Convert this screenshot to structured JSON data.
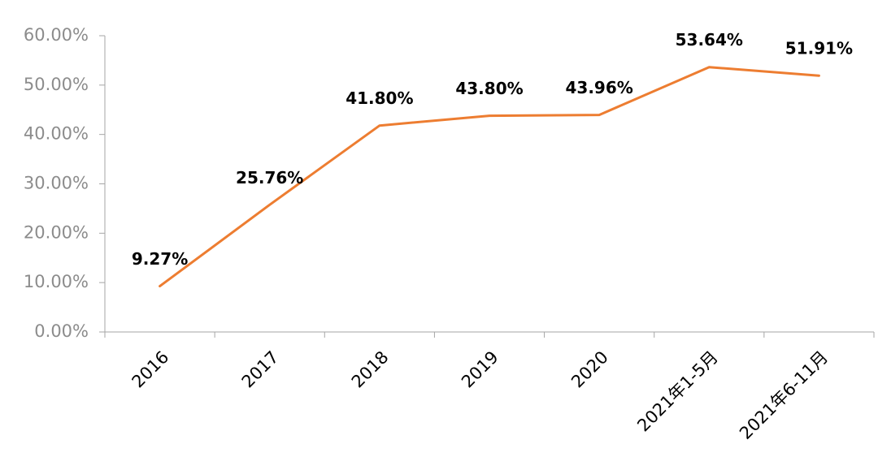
{
  "chart_data": {
    "type": "line",
    "title": "",
    "xlabel": "",
    "ylabel": "",
    "categories": [
      "2016",
      "2017",
      "2018",
      "2019",
      "2020",
      "2021年1-5月",
      "2021年6-11月"
    ],
    "series": [
      {
        "values": [
          9.27,
          25.76,
          41.8,
          43.8,
          43.96,
          53.64,
          51.91
        ],
        "labels": [
          "9.27%",
          "25.76%",
          "41.80%",
          "43.80%",
          "43.96%",
          "53.64%",
          "51.91%"
        ],
        "color": "#ed7d31"
      }
    ],
    "ylim": [
      0,
      60
    ],
    "yticks": [
      0,
      10,
      20,
      30,
      40,
      50,
      60
    ],
    "ytick_labels": [
      "0.00%",
      "10.00%",
      "20.00%",
      "30.00%",
      "40.00%",
      "50.00%",
      "60.00%"
    ],
    "grid": false,
    "legend": "none"
  }
}
